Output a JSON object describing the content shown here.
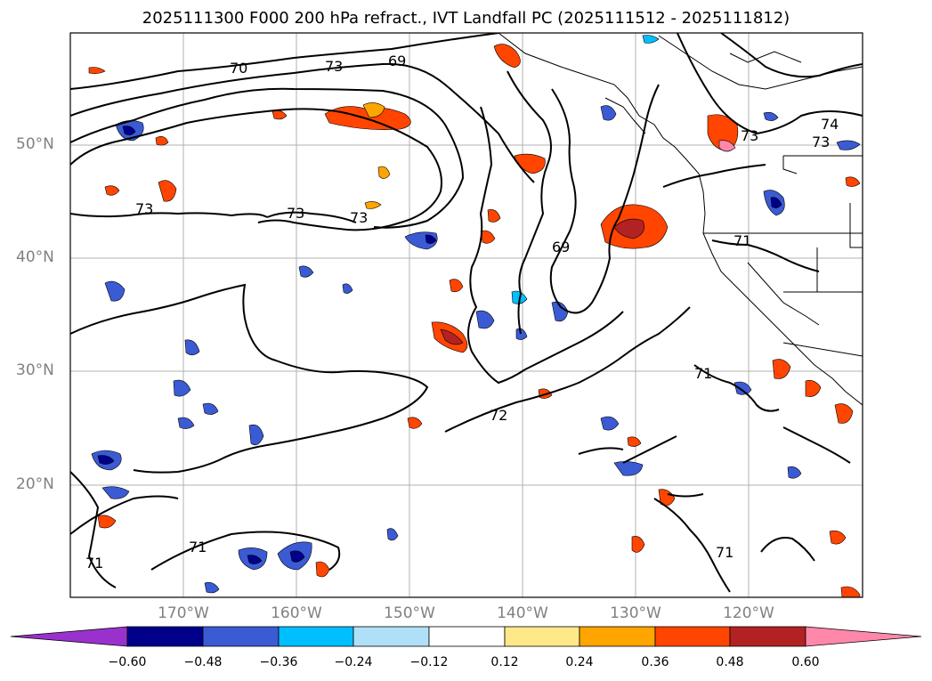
{
  "title": "2025111300 F000 200 hPa refract., IVT Landfall PC (2025111512 - 2025111812)",
  "map": {
    "lat_labels": [
      "50°N",
      "40°N",
      "30°N",
      "20°N"
    ],
    "lon_labels": [
      "170°W",
      "160°W",
      "150°W",
      "140°W",
      "130°W",
      "120°W"
    ],
    "contour_labels": [
      "70",
      "69",
      "73",
      "73",
      "73",
      "73",
      "69",
      "71",
      "71",
      "72",
      "71",
      "71",
      "71",
      "73",
      "73",
      "74"
    ],
    "colors": {
      "frame": "#000000",
      "grid": "#b0b0b0",
      "background": "#ffffff"
    }
  },
  "colorbar": {
    "ticks": [
      "−0.60",
      "−0.48",
      "−0.36",
      "−0.24",
      "−0.12",
      "0.12",
      "0.24",
      "0.36",
      "0.48",
      "0.60"
    ],
    "colors": [
      "#9932cc",
      "#00008b",
      "#3b5bd4",
      "#00bfff",
      "#b0e0f8",
      "#ffffff",
      "#ffe88a",
      "#ffa500",
      "#ff4500",
      "#b22222",
      "#ff88aa"
    ]
  }
}
